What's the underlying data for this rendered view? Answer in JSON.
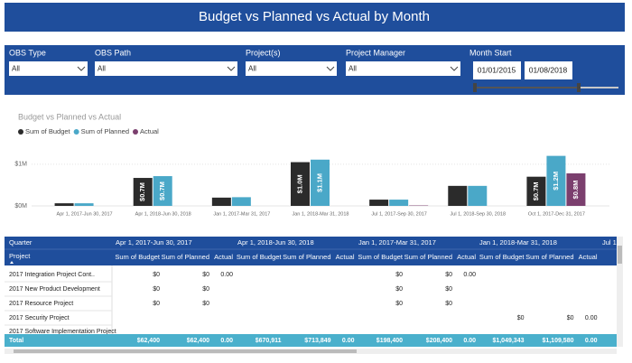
{
  "header": {
    "title": "Budget vs Planned vs Actual by Month"
  },
  "filters": [
    {
      "label": "OBS Type",
      "value": "All"
    },
    {
      "label": "OBS Path",
      "value": "All"
    },
    {
      "label": "Project(s)",
      "value": "All"
    },
    {
      "label": "Project Manager",
      "value": "All"
    }
  ],
  "month_start": {
    "label": "Month Start",
    "from": "01/01/2015",
    "to": "01/08/2018"
  },
  "chart_data": {
    "type": "bar",
    "title": "Budget vs Planned vs Actual",
    "categories": [
      "Apr 1, 2017-Jun 30, 2017",
      "Apr 1, 2018-Jun 30, 2018",
      "Jan 1, 2017-Mar 31, 2017",
      "Jan 1, 2018-Mar 31, 2018",
      "Jul 1, 2017-Sep 30, 2017",
      "Jul 1, 2018-Sep 30, 2018",
      "Oct 1, 2017-Dec 31, 2017"
    ],
    "series": [
      {
        "name": "Sum of Budget",
        "color": "#2b2b2b",
        "values": [
          62400,
          670911,
          198400,
          1049343,
          150000,
          480000,
          700000
        ],
        "value_labels": [
          null,
          "$0.7M",
          null,
          "$1.0M",
          null,
          null,
          "$0.7M"
        ]
      },
      {
        "name": "Sum of Planned",
        "color": "#4aa8c8",
        "values": [
          62400,
          713849,
          208400,
          1109580,
          150000,
          480000,
          1200000
        ],
        "value_labels": [
          null,
          "$0.7M",
          null,
          "$1.1M",
          null,
          null,
          "$1.2M"
        ]
      },
      {
        "name": "Actual",
        "color": "#7b3f6e",
        "values": [
          0,
          0,
          0,
          0,
          10000,
          0,
          780000
        ],
        "value_labels": [
          null,
          null,
          null,
          null,
          null,
          null,
          "$0.8M"
        ]
      }
    ],
    "ylim": [
      0,
      1300000
    ],
    "yticks": [
      {
        "value": 0,
        "label": "$0M"
      },
      {
        "value": 1000000,
        "label": "$1M"
      }
    ],
    "legend": "top-left"
  },
  "table": {
    "group_header": "Quarter",
    "row_header": "Project",
    "groups": [
      "Apr 1, 2017-Jun 30, 2017",
      "Apr 1, 2018-Jun 30, 2018",
      "Jan 1, 2017-Mar 31, 2017",
      "Jan 1, 2018-Mar 31, 2018",
      "Jul 1,"
    ],
    "columns": [
      "Sum of Budget",
      "Sum of Planned",
      "Actual"
    ],
    "rows": [
      {
        "name": "2017 Integration Project Cont..",
        "cells": [
          "$0",
          "$0",
          "0.00",
          null,
          null,
          null,
          "$0",
          "$0",
          "0.00",
          null,
          null,
          null
        ]
      },
      {
        "name": "2017 New Product Development",
        "cells": [
          "$0",
          "$0",
          null,
          null,
          null,
          null,
          "$0",
          "$0",
          null,
          null,
          null,
          null
        ]
      },
      {
        "name": "2017 Resource Project",
        "cells": [
          "$0",
          "$0",
          null,
          null,
          null,
          null,
          "$0",
          "$0",
          null,
          null,
          null,
          null
        ]
      },
      {
        "name": "2017 Security Project",
        "cells": [
          null,
          null,
          null,
          null,
          null,
          null,
          null,
          null,
          null,
          "$0",
          "$0",
          "0.00"
        ]
      },
      {
        "name": "2017 Software Implementation Project",
        "cells": [
          null,
          null,
          null,
          null,
          null,
          null,
          null,
          null,
          null,
          null,
          null,
          null
        ]
      }
    ],
    "total": {
      "label": "Total",
      "cells": [
        "$62,400",
        "$62,400",
        "0.00",
        "$670,911",
        "$713,849",
        "0.00",
        "$198,400",
        "$208,400",
        "0.00",
        "$1,049,343",
        "$1,109,580",
        "0.00"
      ]
    }
  }
}
